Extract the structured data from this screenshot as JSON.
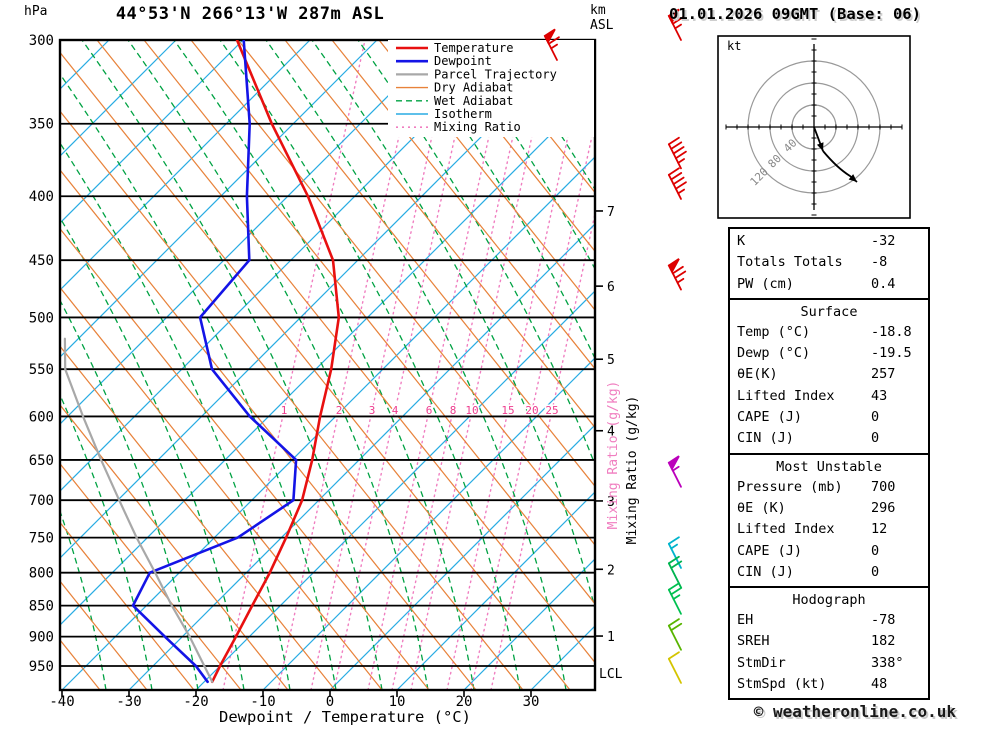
{
  "header": {
    "pressure_unit": "hPa",
    "title": "44°53'N 266°13'W 287m ASL",
    "km_label": "km",
    "asl_label": "ASL",
    "datetime": "01.01.2026 09GMT (Base: 06)"
  },
  "axes": {
    "pressure_ticks_hpa": [
      300,
      350,
      400,
      450,
      500,
      550,
      600,
      650,
      700,
      750,
      800,
      850,
      900,
      950
    ],
    "temp_ticks_c": [
      -40,
      -30,
      -20,
      -10,
      0,
      10,
      20,
      30
    ],
    "x_axis_label": "Dewpoint / Temperature (°C)",
    "km_ticks": [
      {
        "km": "7",
        "p": 411
      },
      {
        "km": "6",
        "p": 472
      },
      {
        "km": "5",
        "p": 540
      },
      {
        "km": "4",
        "p": 616
      },
      {
        "km": "3",
        "p": 701
      },
      {
        "km": "2",
        "p": 795
      },
      {
        "km": "1",
        "p": 899
      }
    ],
    "lcl_label": "LCL",
    "mixing_ratio_axis_label": "Mixing Ratio (g/kg)"
  },
  "legend": {
    "items": [
      {
        "label": "Temperature",
        "color": "#e81010",
        "width": 2.6,
        "dash": ""
      },
      {
        "label": "Dewpoint",
        "color": "#1414e6",
        "width": 2.6,
        "dash": ""
      },
      {
        "label": "Parcel Trajectory",
        "color": "#a8a8a8",
        "width": 2.2,
        "dash": ""
      },
      {
        "label": "Dry Adiabat",
        "color": "#e8823a",
        "width": 1.4,
        "dash": ""
      },
      {
        "label": "Wet Adiabat",
        "color": "#00a243",
        "width": 1.4,
        "dash": "6 4"
      },
      {
        "label": "Isotherm",
        "color": "#29ace3",
        "width": 1.4,
        "dash": ""
      },
      {
        "label": "Mixing Ratio",
        "color": "#f07ec0",
        "width": 1.6,
        "dash": "2 4"
      }
    ]
  },
  "chart_data": {
    "type": "skewt-log-p",
    "pressure_range_hpa": [
      300,
      993
    ],
    "temp_axis_range_c": [
      -40,
      39
    ],
    "mixing_ratio_lines_g_kg": [
      "1",
      "2",
      "3",
      "4",
      "6",
      "8",
      "10",
      "15",
      "20",
      "25"
    ],
    "series": [
      {
        "name": "Temperature",
        "points_p_hpa_t_c": [
          [
            978,
            -18.8
          ],
          [
            950,
            -20.0
          ],
          [
            900,
            -22.0
          ],
          [
            850,
            -24.2
          ],
          [
            800,
            -26.5
          ],
          [
            750,
            -29.3
          ],
          [
            700,
            -32.5
          ],
          [
            650,
            -37.0
          ],
          [
            600,
            -42.3
          ],
          [
            550,
            -47.7
          ],
          [
            500,
            -54.3
          ],
          [
            450,
            -63.7
          ],
          [
            400,
            -77.0
          ],
          [
            350,
            -93.2
          ],
          [
            300,
            -110.9
          ]
        ]
      },
      {
        "name": "Dewpoint",
        "points_p_hpa_t_c": [
          [
            978,
            -19.5
          ],
          [
            950,
            -23.6
          ],
          [
            900,
            -32.6
          ],
          [
            850,
            -42.0
          ],
          [
            800,
            -44.4
          ],
          [
            750,
            -36.5
          ],
          [
            700,
            -33.8
          ],
          [
            650,
            -39.4
          ],
          [
            600,
            -52.8
          ],
          [
            550,
            -65.5
          ],
          [
            500,
            -75.0
          ],
          [
            450,
            -76.2
          ],
          [
            400,
            -86.1
          ],
          [
            350,
            -96.5
          ],
          [
            300,
            -109.9
          ]
        ]
      },
      {
        "name": "Parcel Trajectory",
        "points_p_hpa_t_c": [
          [
            978,
            -18.8
          ],
          [
            900,
            -28.9
          ],
          [
            850,
            -36.2
          ],
          [
            800,
            -43.6
          ],
          [
            750,
            -51.6
          ],
          [
            700,
            -59.8
          ],
          [
            650,
            -68.5
          ],
          [
            600,
            -77.7
          ],
          [
            550,
            -87.4
          ],
          [
            520,
            -92.0
          ]
        ]
      }
    ]
  },
  "wind_barbs": {
    "levels": [
      {
        "p": 300,
        "speed": 65,
        "color": "#dd0000"
      },
      {
        "p": 380,
        "speed": 45,
        "color": "#dd0000"
      },
      {
        "p": 402,
        "speed": 45,
        "color": "#dd0000"
      },
      {
        "p": 475,
        "speed": 75,
        "color": "#dd0000"
      },
      {
        "p": 683,
        "speed": 55,
        "color": "#bb00bb"
      },
      {
        "p": 793,
        "speed": 15,
        "color": "#00b4cc"
      },
      {
        "p": 822,
        "speed": 20,
        "color": "#00b450"
      },
      {
        "p": 863,
        "speed": 25,
        "color": "#00c050"
      },
      {
        "p": 922,
        "speed": 20,
        "color": "#58b400"
      },
      {
        "p": 980,
        "speed": 10,
        "color": "#d4c400"
      }
    ],
    "inset": {
      "speed": 65,
      "color": "#dd0000"
    }
  },
  "hodograph": {
    "unit": "kt",
    "ring_labels": [
      "40",
      "80",
      "120"
    ]
  },
  "table": {
    "sections": [
      {
        "header": "",
        "rows": [
          [
            "K",
            "-32"
          ],
          [
            "Totals Totals",
            "-8"
          ],
          [
            "PW (cm)",
            "0.4"
          ]
        ]
      },
      {
        "header": "Surface",
        "rows": [
          [
            "Temp (°C)",
            "-18.8"
          ],
          [
            "Dewp (°C)",
            "-19.5"
          ],
          [
            "θE(K)",
            "257"
          ],
          [
            "Lifted Index",
            "43"
          ],
          [
            "CAPE (J)",
            "0"
          ],
          [
            "CIN (J)",
            "0"
          ]
        ]
      },
      {
        "header": "Most Unstable",
        "rows": [
          [
            "Pressure (mb)",
            "700"
          ],
          [
            "θE (K)",
            "296"
          ],
          [
            "Lifted Index",
            "12"
          ],
          [
            "CAPE (J)",
            "0"
          ],
          [
            "CIN (J)",
            "0"
          ]
        ]
      },
      {
        "header": "Hodograph",
        "rows": [
          [
            "EH",
            "-78"
          ],
          [
            "SREH",
            "182"
          ],
          [
            "StmDir",
            "338°"
          ],
          [
            "StmSpd (kt)",
            "48"
          ]
        ]
      }
    ]
  },
  "footer": {
    "copyright": "© weatheronline.co.uk"
  },
  "colors": {
    "isotherm": "#29ace3",
    "dry_adiabat": "#e8823a",
    "wet_adiabat": "#00a243",
    "mixing_ratio_line": "#f07ec0",
    "mixing_ratio_label": "#ee3d8f",
    "grid": "#000000",
    "temperature": "#e81010",
    "dewpoint": "#1414e6",
    "parcel": "#a8a8a8"
  }
}
